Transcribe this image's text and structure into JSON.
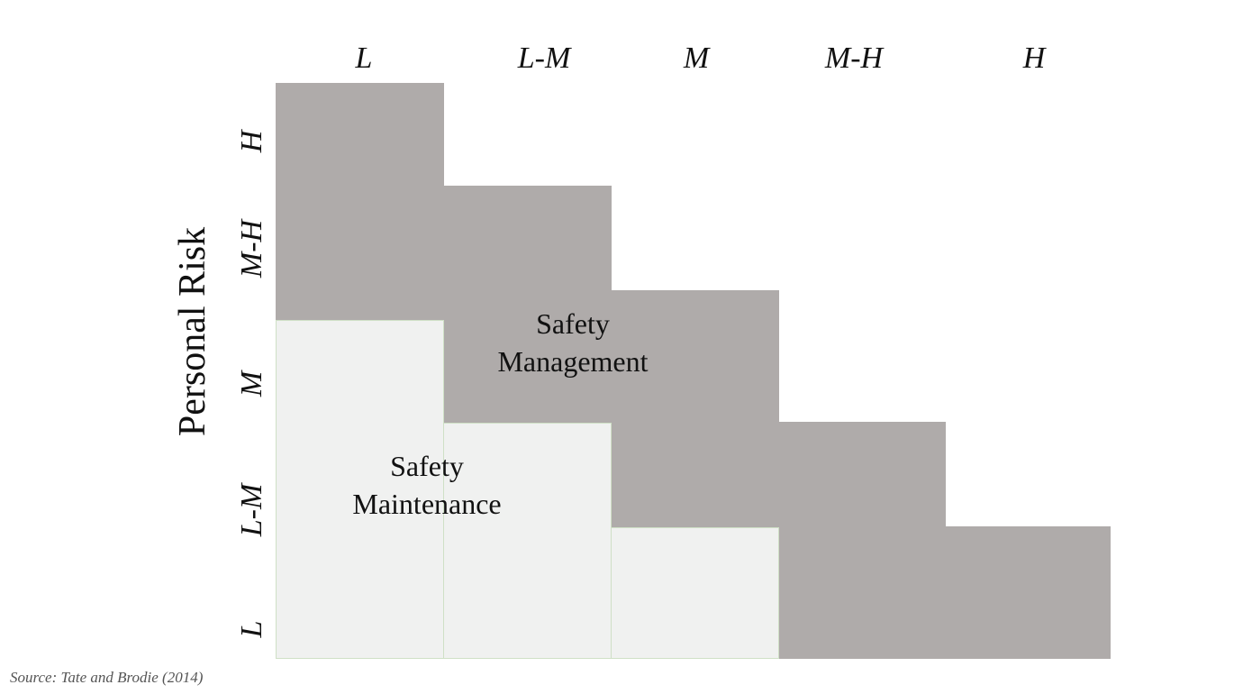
{
  "diagram": {
    "y_axis_title": "Personal Risk",
    "column_labels": [
      "L",
      "L-M",
      "M",
      "M-H",
      "H"
    ],
    "row_labels": [
      "H",
      "M-H",
      "M",
      "L-M",
      "L"
    ],
    "zones": {
      "management": {
        "line1": "Safety",
        "line2": "Management",
        "color": "#afabaa"
      },
      "maintenance": {
        "line1": "Safety",
        "line2": "Maintenance",
        "color": "#f0f1f0"
      }
    },
    "source": "Source: Tate and Brodie (2014)"
  }
}
